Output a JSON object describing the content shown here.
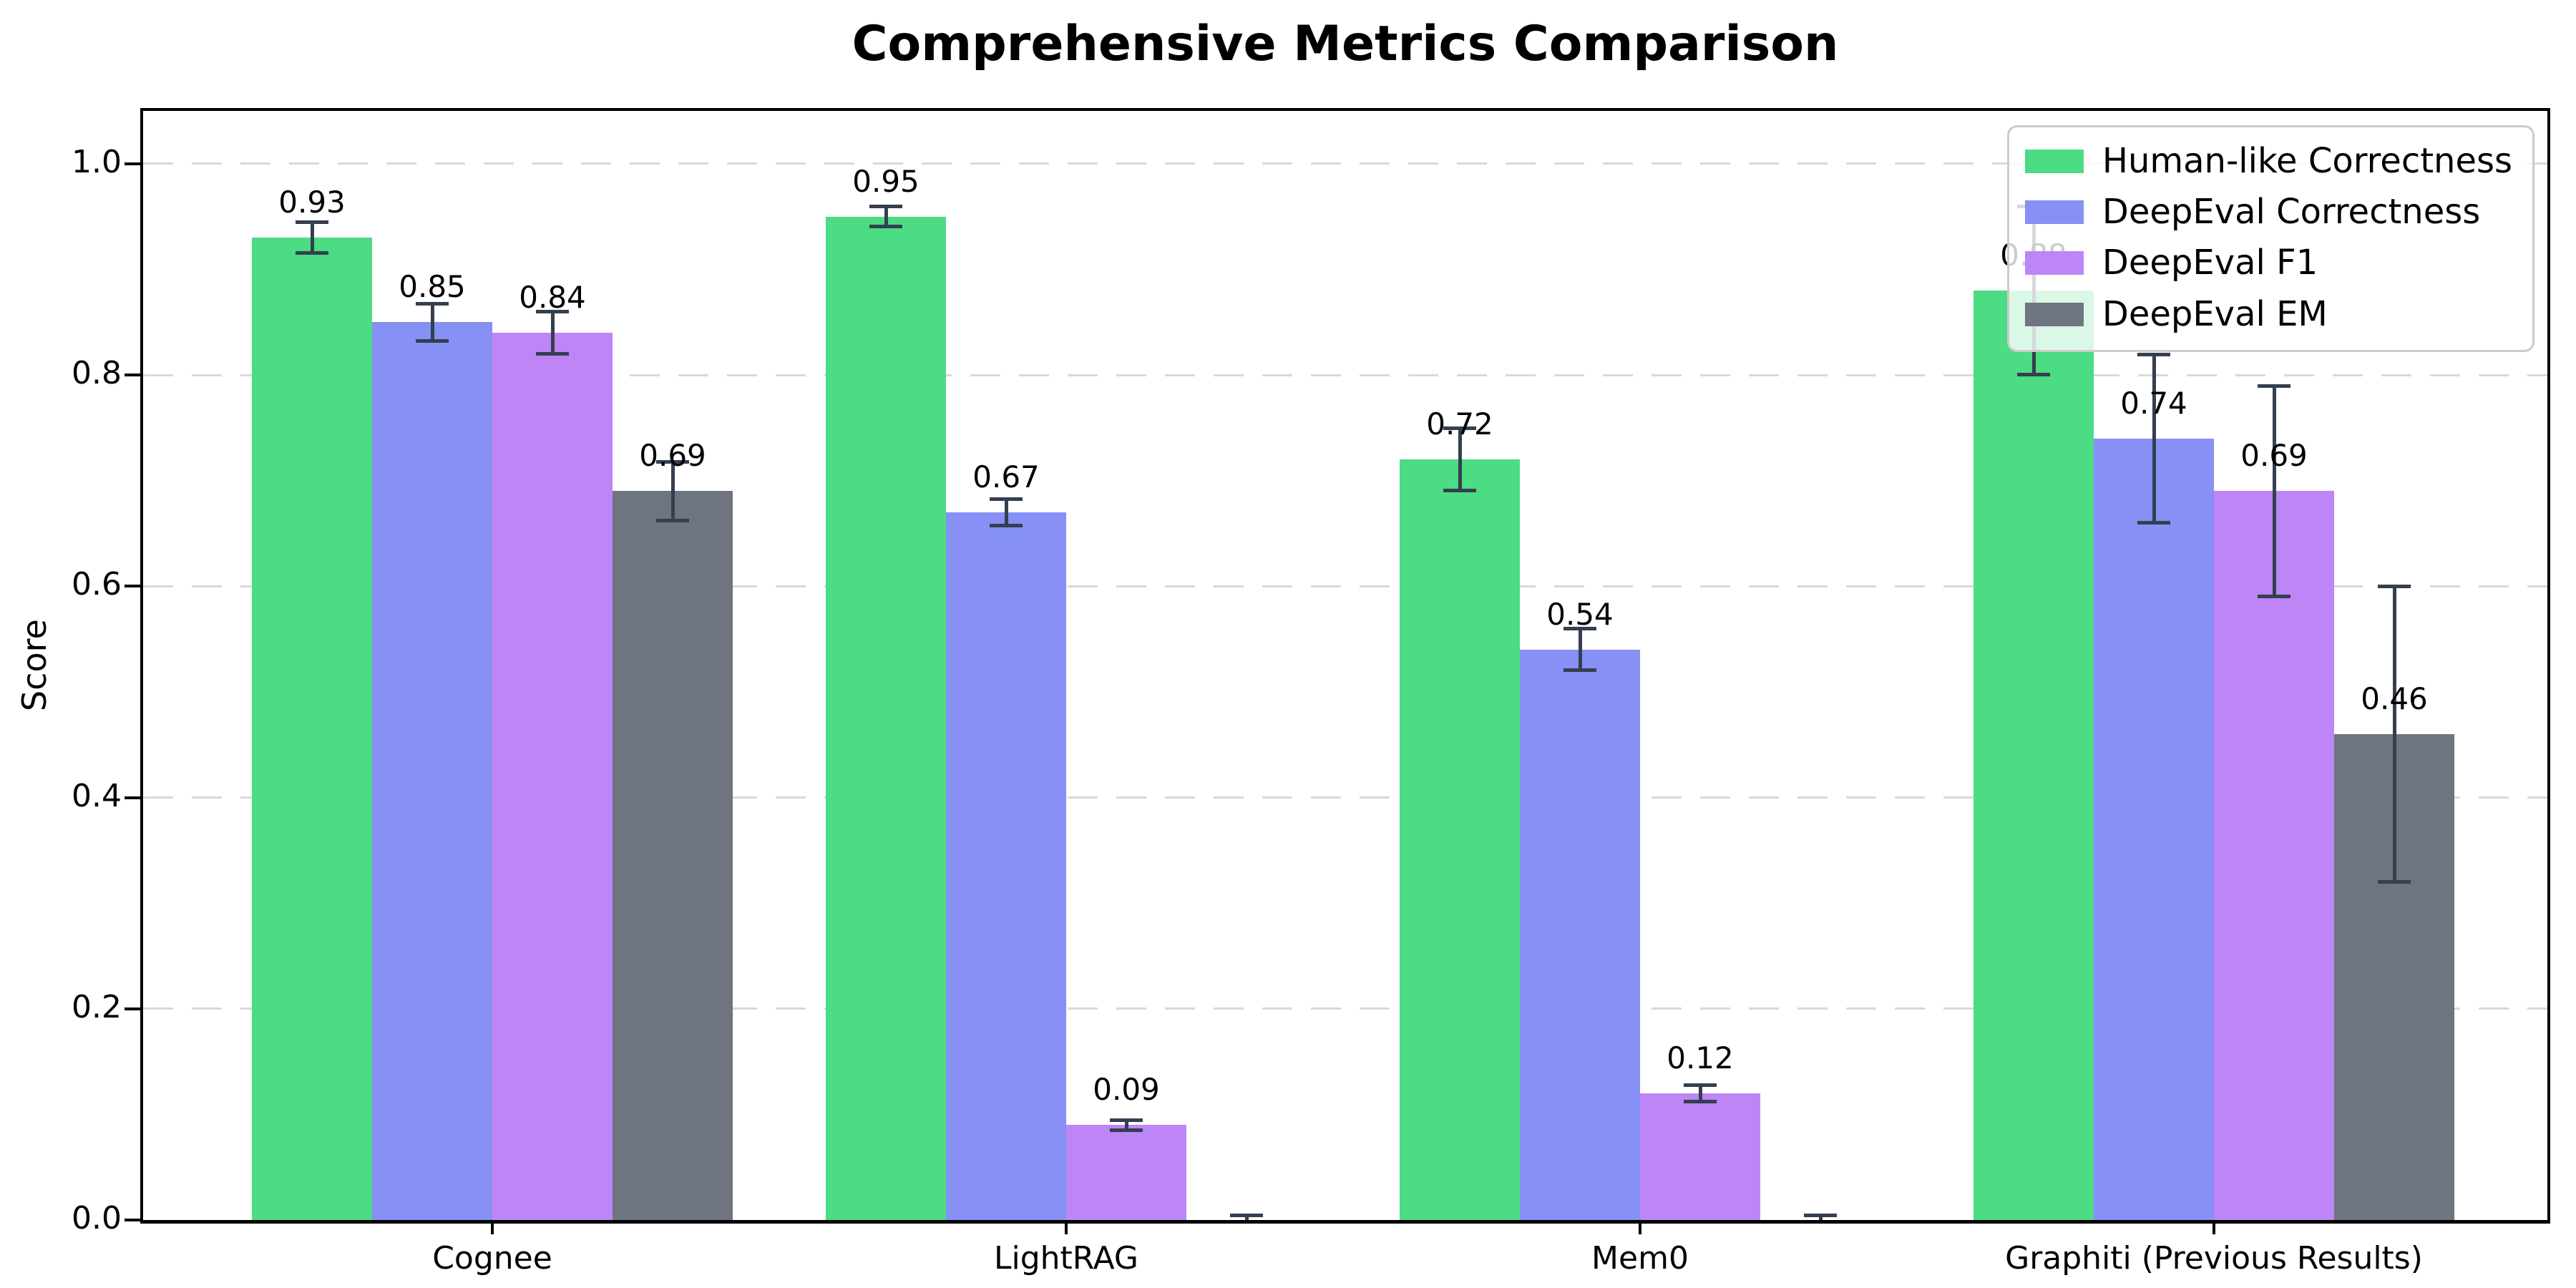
{
  "chart_data": {
    "type": "bar",
    "title": "Comprehensive Metrics Comparison",
    "ylabel": "Score",
    "xlabel": "",
    "categories": [
      "Cognee",
      "LightRAG",
      "Mem0",
      "Graphiti (Previous Results)"
    ],
    "series": [
      {
        "name": "Human-like Correctness",
        "color": "#4bdc84",
        "values": [
          0.93,
          0.95,
          0.72,
          0.88
        ],
        "errors": [
          0.015,
          0.01,
          0.03,
          0.08
        ],
        "bar_labels": [
          "0.93",
          "0.95",
          "0.72",
          "0.88"
        ]
      },
      {
        "name": "DeepEval Correctness",
        "color": "#8690f5",
        "values": [
          0.85,
          0.67,
          0.54,
          0.74
        ],
        "errors": [
          0.018,
          0.013,
          0.02,
          0.08
        ],
        "bar_labels": [
          "0.85",
          "0.67",
          "0.54",
          "0.74"
        ]
      },
      {
        "name": "DeepEval F1",
        "color": "#bd85f5",
        "values": [
          0.84,
          0.09,
          0.12,
          0.69
        ],
        "errors": [
          0.02,
          0.005,
          0.008,
          0.1
        ],
        "bar_labels": [
          "0.84",
          "0.09",
          "0.12",
          "0.69"
        ]
      },
      {
        "name": "DeepEval EM",
        "color": "#6e7480",
        "values": [
          0.69,
          0.0,
          0.0,
          0.46
        ],
        "errors": [
          0.028,
          0.005,
          0.005,
          0.14
        ],
        "bar_labels": [
          "0.69",
          null,
          null,
          "0.46"
        ]
      }
    ],
    "ylim": [
      0,
      1.05
    ],
    "yticks": [
      "0.0",
      "0.2",
      "0.4",
      "0.6",
      "0.8",
      "1.0"
    ],
    "grid": {
      "axis": "y",
      "style": "dashed",
      "color": "#d9d9d9"
    },
    "legend": {
      "position": "upper right"
    },
    "error_bar_color": "#343f4f"
  }
}
